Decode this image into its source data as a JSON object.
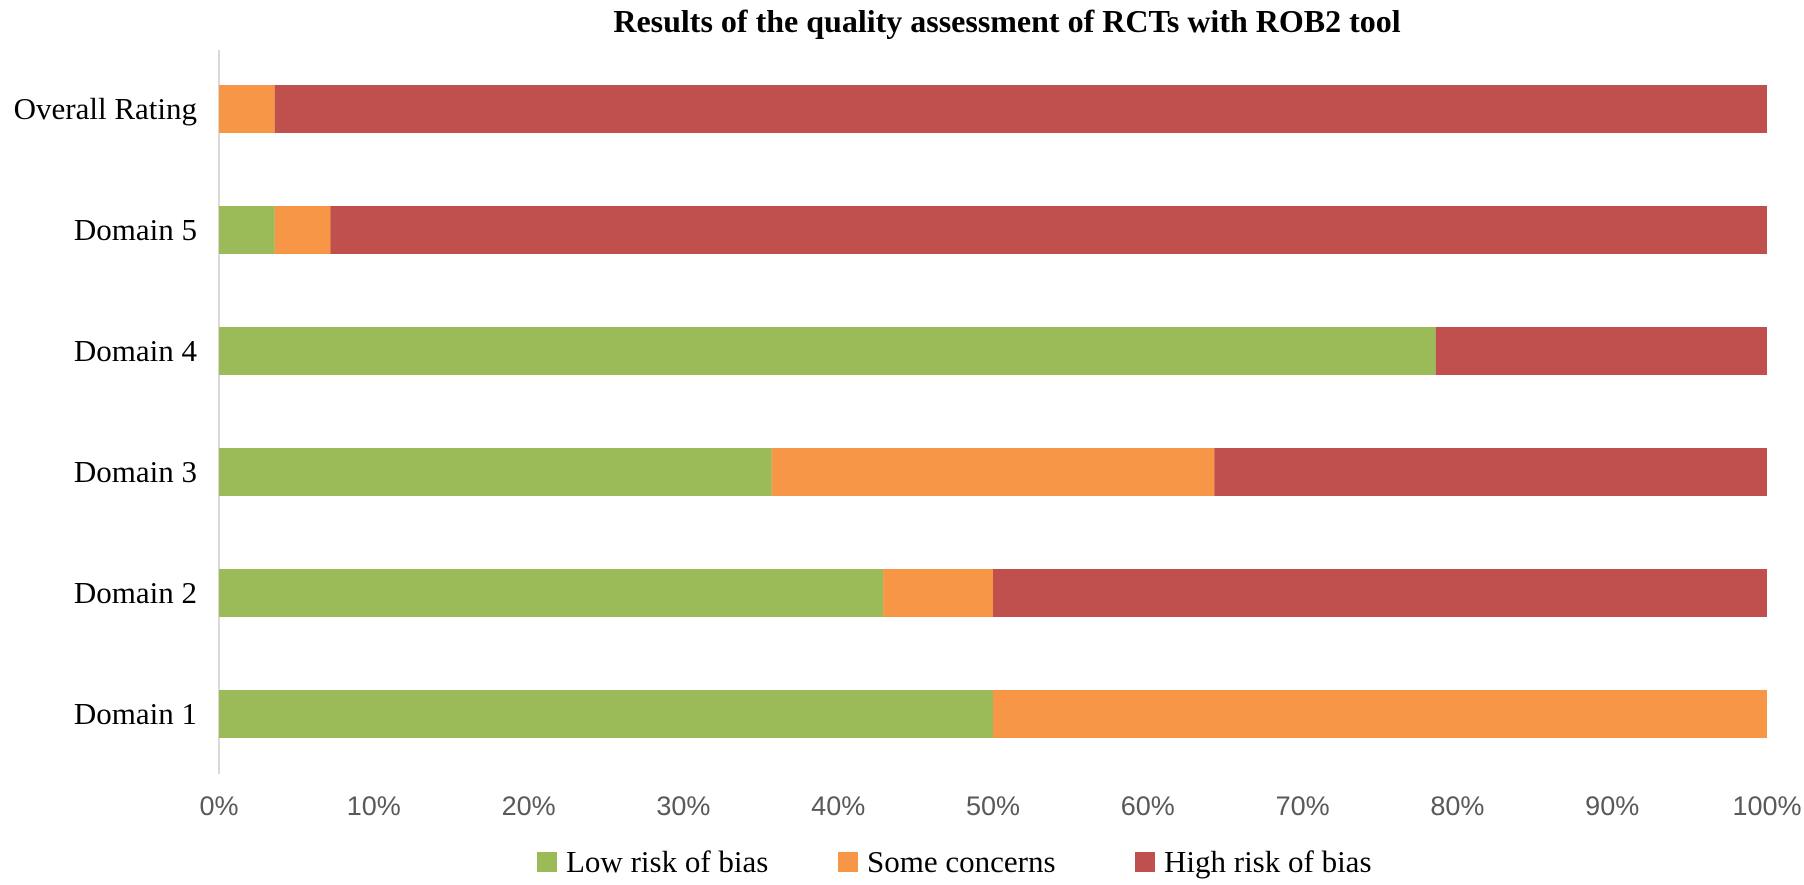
{
  "chart_data": {
    "type": "bar",
    "orientation": "horizontal",
    "stacked": "percent",
    "title": "Results of the quality assessment of RCTs with ROB2 tool",
    "xlabel": "",
    "ylabel": "",
    "xlim": [
      0,
      100
    ],
    "x_ticks": [
      "0%",
      "10%",
      "20%",
      "30%",
      "40%",
      "50%",
      "60%",
      "70%",
      "80%",
      "90%",
      "100%"
    ],
    "categories": [
      "Overall Rating",
      "Domain 5",
      "Domain 4",
      "Domain 3",
      "Domain 2",
      "Domain 1"
    ],
    "series": [
      {
        "name": "Low risk of bias",
        "color": "#9BBB59",
        "values": [
          0,
          3.6,
          78.6,
          35.7,
          42.9,
          50.0
        ]
      },
      {
        "name": "Some concerns",
        "color": "#F79646",
        "values": [
          3.6,
          3.6,
          0,
          28.6,
          7.1,
          50.0
        ]
      },
      {
        "name": "High risk of bias",
        "color": "#C0504D",
        "values": [
          96.4,
          92.8,
          21.4,
          35.7,
          50.0,
          0
        ]
      }
    ],
    "legend_position": "bottom",
    "grid": false
  }
}
